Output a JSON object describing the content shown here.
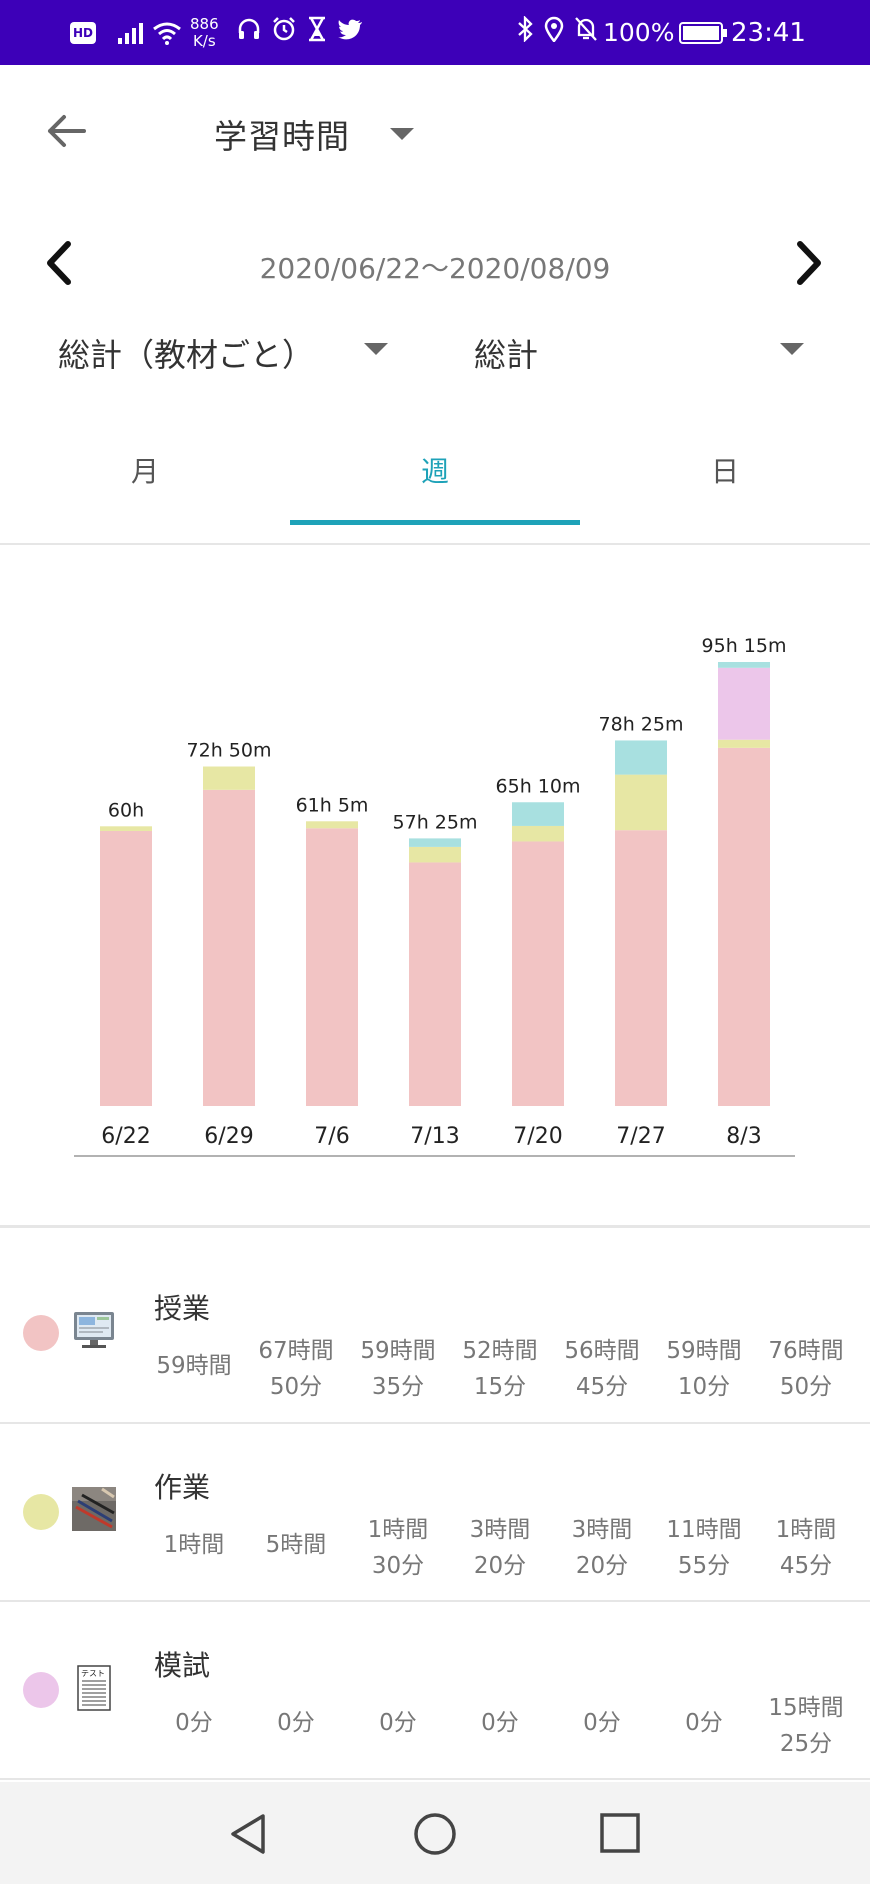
{
  "status_bar": {
    "hd": "HD",
    "net_speed_value": "886",
    "net_speed_unit": "K/s",
    "left_icons": [
      "headphones-icon",
      "alarm-icon",
      "hourglass-icon",
      "twitter-icon"
    ],
    "right_icons": [
      "bluetooth-icon",
      "location-icon",
      "mute-icon"
    ],
    "battery": "100%",
    "time": "23:41",
    "background": "#3d00b8"
  },
  "header": {
    "title": "学習時間",
    "date_range": "2020/06/22〜2020/08/09",
    "filter_left": "総計（教材ごと）",
    "filter_right": "総計"
  },
  "tabs": [
    {
      "label": "月",
      "selected": false
    },
    {
      "label": "週",
      "selected": true
    },
    {
      "label": "日",
      "selected": false
    }
  ],
  "accent_color": "#1ea2b8",
  "chart_data": {
    "type": "bar",
    "stacked": true,
    "categories": [
      "6/22",
      "6/29",
      "7/6",
      "7/13",
      "7/20",
      "7/27",
      "8/3"
    ],
    "totals_labels": [
      "60h",
      "72h 50m",
      "61h 5m",
      "57h 25m",
      "65h 10m",
      "78h 25m",
      "95h 15m"
    ],
    "series": [
      {
        "name": "授業",
        "color": "#f2c4c4",
        "values": [
          59,
          67.83,
          59.58,
          52.25,
          56.75,
          59.17,
          76.83
        ]
      },
      {
        "name": "作業",
        "color": "#e7e7a4",
        "values": [
          1,
          5,
          1.5,
          3.33,
          3.33,
          11.92,
          1.75
        ]
      },
      {
        "name": "模試",
        "color": "#ecc6ea",
        "values": [
          0,
          0,
          0,
          0,
          0,
          0,
          15.42
        ]
      },
      {
        "name": "",
        "color": "#a8e0e0",
        "values": [
          0,
          0,
          0,
          1.83,
          5.08,
          7.33,
          1.25
        ]
      }
    ],
    "ylim": [
      0,
      95.25
    ],
    "grid": false,
    "legend": "below"
  },
  "legend_rows": [
    {
      "name": "授業",
      "color": "#f2c4c4",
      "icon": "monitor-icon",
      "values": [
        [
          "59時間"
        ],
        [
          "67時間",
          "50分"
        ],
        [
          "59時間",
          "35分"
        ],
        [
          "52時間",
          "15分"
        ],
        [
          "56時間",
          "45分"
        ],
        [
          "59時間",
          "10分"
        ],
        [
          "76時間",
          "50分"
        ]
      ]
    },
    {
      "name": "作業",
      "color": "#e7e7a4",
      "icon": "pens-photo-icon",
      "values": [
        [
          "1時間"
        ],
        [
          "5時間"
        ],
        [
          "1時間",
          "30分"
        ],
        [
          "3時間",
          "20分"
        ],
        [
          "3時間",
          "20分"
        ],
        [
          "11時間",
          "55分"
        ],
        [
          "1時間",
          "45分"
        ]
      ]
    },
    {
      "name": "模試",
      "color": "#ecc6ea",
      "icon": "test-sheet-icon",
      "test_sheet_label": "テスト",
      "values": [
        [
          "0分"
        ],
        [
          "0分"
        ],
        [
          "0分"
        ],
        [
          "0分"
        ],
        [
          "0分"
        ],
        [
          "0分"
        ],
        [
          "15時間",
          "25分"
        ]
      ]
    }
  ],
  "nav_bar": {
    "icons": [
      "back-triangle-icon",
      "home-circle-icon",
      "recents-square-icon"
    ]
  }
}
